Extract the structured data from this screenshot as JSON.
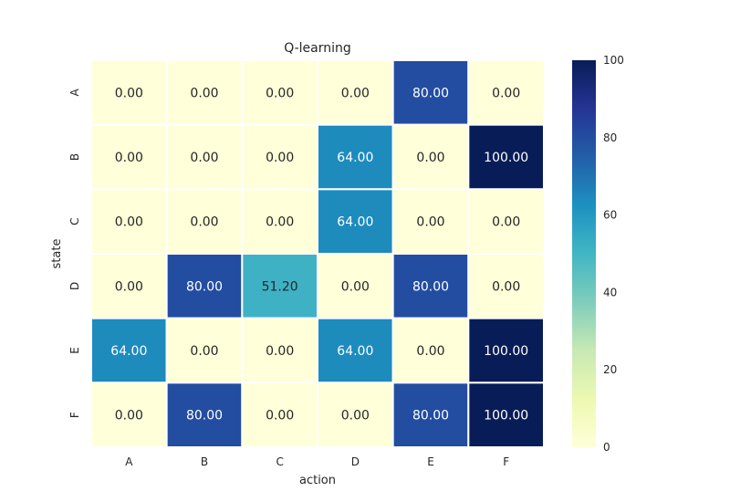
{
  "chart_data": {
    "type": "heatmap",
    "title": "Q-learning",
    "xlabel": "action",
    "ylabel": "state",
    "x_categories": [
      "A",
      "B",
      "C",
      "D",
      "E",
      "F"
    ],
    "y_categories": [
      "A",
      "B",
      "C",
      "D",
      "E",
      "F"
    ],
    "values": [
      [
        0.0,
        0.0,
        0.0,
        0.0,
        80.0,
        0.0
      ],
      [
        0.0,
        0.0,
        0.0,
        64.0,
        0.0,
        100.0
      ],
      [
        0.0,
        0.0,
        0.0,
        64.0,
        0.0,
        0.0
      ],
      [
        0.0,
        80.0,
        51.2,
        0.0,
        80.0,
        0.0
      ],
      [
        64.0,
        0.0,
        0.0,
        64.0,
        0.0,
        100.0
      ],
      [
        0.0,
        80.0,
        0.0,
        0.0,
        80.0,
        100.0
      ]
    ],
    "value_labels": [
      [
        "0.00",
        "0.00",
        "0.00",
        "0.00",
        "80.00",
        "0.00"
      ],
      [
        "0.00",
        "0.00",
        "0.00",
        "64.00",
        "0.00",
        "100.00"
      ],
      [
        "0.00",
        "0.00",
        "0.00",
        "64.00",
        "0.00",
        "0.00"
      ],
      [
        "0.00",
        "80.00",
        "51.20",
        "0.00",
        "80.00",
        "0.00"
      ],
      [
        "64.00",
        "0.00",
        "0.00",
        "64.00",
        "0.00",
        "100.00"
      ],
      [
        "0.00",
        "80.00",
        "0.00",
        "0.00",
        "80.00",
        "100.00"
      ]
    ],
    "colorbar": {
      "range": [
        0,
        100
      ],
      "ticks": [
        0,
        20,
        40,
        60,
        80,
        100
      ],
      "tick_labels": [
        "0",
        "20",
        "40",
        "60",
        "80",
        "100"
      ],
      "colormap": "YlGnBu"
    },
    "grid": false,
    "cell_border_color": "#ffffff"
  }
}
